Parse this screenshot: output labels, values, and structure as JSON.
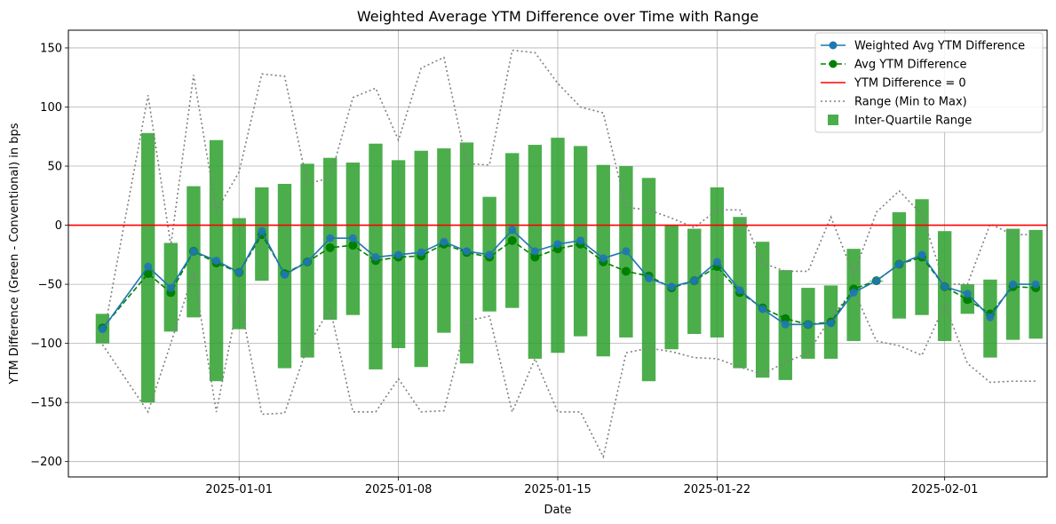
{
  "chart_data": {
    "type": "line",
    "title": "Weighted Average YTM Difference over Time with Range",
    "xlabel": "Date",
    "ylabel": "YTM Difference (Green - Conventional) in bps",
    "ylim": [
      -213,
      165
    ],
    "xlim": [
      "2024-12-24T12:00",
      "2025-02-05T12:00"
    ],
    "yticks": [
      -200,
      -150,
      -100,
      -50,
      0,
      50,
      100,
      150
    ],
    "xticks": [
      "2025-01-01",
      "2025-01-08",
      "2025-01-15",
      "2025-01-22",
      "2025-02-01"
    ],
    "grid": true,
    "legend_position": "top-right",
    "x": [
      "2024-12-26",
      "2024-12-28",
      "2024-12-29",
      "2024-12-30",
      "2024-12-31",
      "2025-01-01",
      "2025-01-02",
      "2025-01-03",
      "2025-01-04",
      "2025-01-05",
      "2025-01-06",
      "2025-01-07",
      "2025-01-08",
      "2025-01-09",
      "2025-01-10",
      "2025-01-11",
      "2025-01-12",
      "2025-01-13",
      "2025-01-14",
      "2025-01-15",
      "2025-01-16",
      "2025-01-17",
      "2025-01-18",
      "2025-01-19",
      "2025-01-20",
      "2025-01-21",
      "2025-01-22",
      "2025-01-23",
      "2025-01-24",
      "2025-01-25",
      "2025-01-26",
      "2025-01-27",
      "2025-01-28",
      "2025-01-29",
      "2025-01-30",
      "2025-01-31",
      "2025-02-01",
      "2025-02-02",
      "2025-02-03",
      "2025-02-04",
      "2025-02-05"
    ],
    "series": [
      {
        "name": "Weighted Avg YTM Difference",
        "kind": "line",
        "color": "#1f77b4",
        "values": [
          -88,
          -35,
          -53,
          -22,
          -30,
          -40,
          -5,
          -42,
          -31,
          -11,
          -11,
          -27,
          -25,
          -23,
          -14,
          -22,
          -25,
          -4,
          -22,
          -16,
          -13,
          -28,
          -22,
          -45,
          -52,
          -47,
          -31,
          -55,
          -71,
          -84,
          -84,
          -83,
          -57,
          -47,
          -33,
          -25,
          -52,
          -58,
          -78,
          -50,
          -50
        ]
      },
      {
        "name": "Avg YTM Difference",
        "kind": "dashed-line",
        "color": "#008000",
        "values": [
          -87,
          -41,
          -57,
          -22,
          -32,
          -40,
          -8,
          -41,
          -31,
          -19,
          -17,
          -30,
          -27,
          -26,
          -16,
          -23,
          -27,
          -13,
          -27,
          -20,
          -16,
          -31,
          -39,
          -43,
          -53,
          -47,
          -35,
          -57,
          -70,
          -79,
          -84,
          -82,
          -54,
          -47,
          -33,
          -27,
          -52,
          -63,
          -75,
          -52,
          -53
        ]
      },
      {
        "name": "YTM Difference = 0",
        "kind": "hline",
        "color": "#ff0000",
        "value": 0
      },
      {
        "name": "Range (Min to Max)",
        "kind": "range-lines",
        "color": "#808080",
        "max": [
          -98,
          110,
          -17,
          127,
          12,
          45,
          128,
          126,
          35,
          40,
          108,
          116,
          72,
          133,
          142,
          52,
          51,
          148,
          146,
          120,
          100,
          95,
          15,
          13,
          6,
          -2,
          13,
          13,
          -32,
          -39,
          -39,
          7,
          -42,
          11,
          29,
          9,
          -50,
          -50,
          1,
          -8,
          -8
        ],
        "min": [
          -101,
          -158,
          -100,
          -40,
          -158,
          -60,
          -160,
          -159,
          -103,
          -70,
          -158,
          -158,
          -130,
          -158,
          -157,
          -81,
          -77,
          -158,
          -113,
          -158,
          -158,
          -196,
          -108,
          -104,
          -107,
          -112,
          -113,
          -120,
          -126,
          -116,
          -108,
          -78,
          -55,
          -98,
          -102,
          -110,
          -67,
          -117,
          -133,
          -132,
          -132
        ]
      },
      {
        "name": "Inter-Quartile Range",
        "kind": "range-bars",
        "color": "#2ca02c",
        "low": [
          -100,
          -150,
          -90,
          -78,
          -132,
          -88,
          -47,
          -121,
          -112,
          -80,
          -76,
          -122,
          -104,
          -120,
          -91,
          -117,
          -73,
          -70,
          -113,
          -108,
          -94,
          -111,
          -95,
          -132,
          -105,
          -92,
          -95,
          -121,
          -129,
          -131,
          -113,
          -113,
          -98,
          -47,
          -79,
          -76,
          -98,
          -75,
          -112,
          -97,
          -96
        ],
        "high": [
          -75,
          78,
          -15,
          33,
          72,
          6,
          32,
          35,
          52,
          57,
          53,
          69,
          55,
          63,
          65,
          70,
          24,
          61,
          68,
          74,
          67,
          51,
          50,
          40,
          0,
          -3,
          32,
          7,
          -14,
          -38,
          -53,
          -51,
          -20,
          -47,
          11,
          22,
          -5,
          -50,
          -46,
          -3,
          -4
        ]
      }
    ]
  }
}
